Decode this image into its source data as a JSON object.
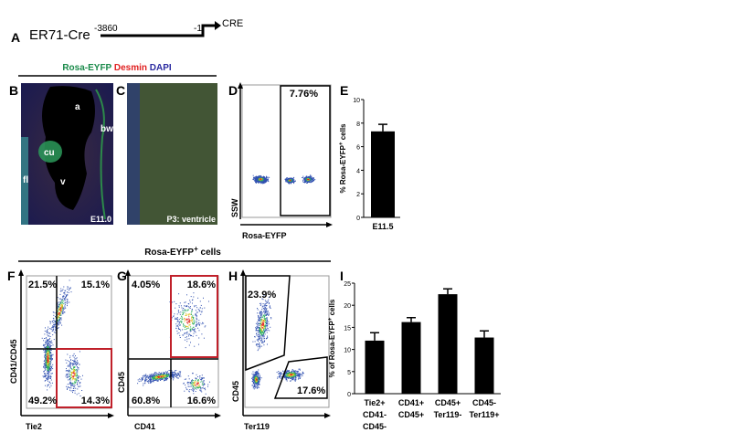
{
  "panelA": {
    "letter": "A",
    "construct": "ER71-Cre",
    "start": "-3860",
    "end": "-1",
    "gene": "CRE"
  },
  "stain_title": {
    "green": "Rosa-EYFP",
    "red": "Desmin",
    "blue": "DAPI"
  },
  "panelB": {
    "letter": "B",
    "labels": [
      "a",
      "bw",
      "cu",
      "fl",
      "v"
    ],
    "stage": "E11.0"
  },
  "panelC": {
    "letter": "C",
    "stage": "P3: ventricle"
  },
  "panelD": {
    "letter": "D",
    "gate": "7.76%",
    "ylabel": "SSW",
    "xlabel": "Rosa-EYFP"
  },
  "section2_title": {
    "main": "Rosa-EYFP",
    "sup": "+",
    "rest": " cells"
  },
  "panelF": {
    "letter": "F",
    "quadrants": [
      "21.5%",
      "15.1%",
      "49.2%",
      "14.3%"
    ],
    "ylabel": "CD41/CD45",
    "xlabel": "Tie2"
  },
  "panelG": {
    "letter": "G",
    "quadrants": [
      "4.05%",
      "18.6%",
      "60.8%",
      "16.6%"
    ],
    "ylabel": "CD45",
    "xlabel": "CD41"
  },
  "panelH": {
    "letter": "H",
    "gates": [
      "23.9%",
      "17.6%"
    ],
    "ylabel": "CD45",
    "xlabel": "Ter119"
  },
  "colors": {
    "highlight": "#c0202a",
    "green": "#1a8a4a",
    "red": "#e02020",
    "blue": "#2a2aa0"
  },
  "chart_data": [
    {
      "type": "bar",
      "panel": "E",
      "categories": [
        "E11.5"
      ],
      "values": [
        7.3
      ],
      "errors": [
        0.6
      ],
      "ylabel": "% Rosa-EYFP+ cells",
      "ylim": [
        0,
        10
      ],
      "yticks": [
        0,
        2,
        4,
        6,
        8,
        10
      ]
    },
    {
      "type": "bar",
      "panel": "I",
      "categories": [
        [
          "Tie2+",
          "CD41-",
          "CD45-"
        ],
        [
          "CD41+",
          "CD45+"
        ],
        [
          "CD45+",
          "Ter119-"
        ],
        [
          "CD45-",
          "Ter119+"
        ]
      ],
      "values": [
        12,
        16.2,
        22.5,
        12.7
      ],
      "errors": [
        1.8,
        1.0,
        1.2,
        1.5
      ],
      "ylabel": "% of Rosa-EYFP+ cells",
      "ylim": [
        0,
        25
      ],
      "yticks": [
        0,
        5,
        10,
        15,
        20,
        25
      ]
    }
  ]
}
